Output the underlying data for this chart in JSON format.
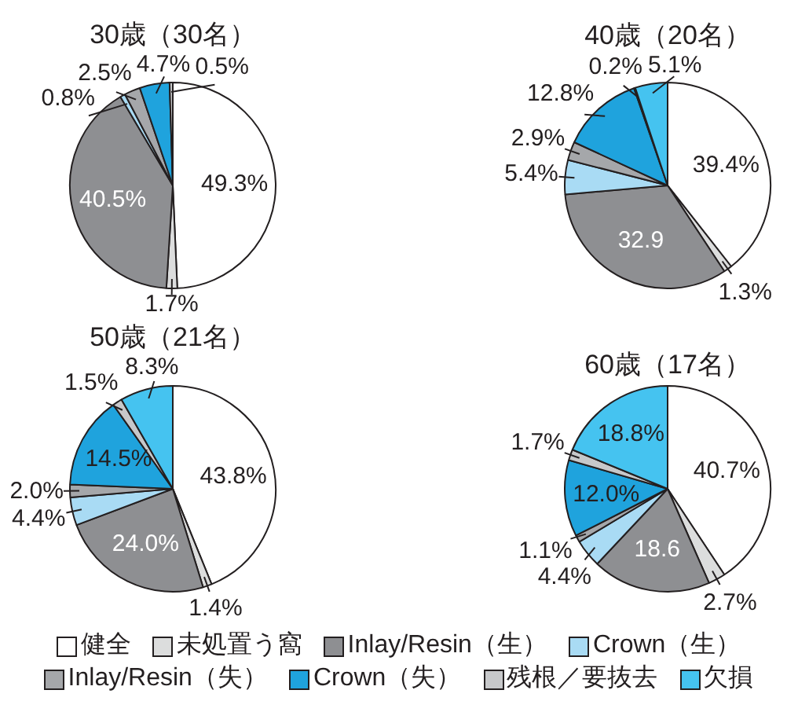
{
  "chart_data": [
    {
      "type": "pie",
      "title": "30歳（30名）",
      "categories": [
        "健全",
        "未処置う窩",
        "Inlay/Resin（生）",
        "Crown（生）",
        "Inlay/Resin（失）",
        "Crown（失）",
        "残根／要抜去",
        "欠損"
      ],
      "values": [
        49.3,
        1.7,
        40.5,
        0.8,
        2.5,
        4.7,
        0.5,
        0
      ],
      "colors": [
        "#ffffff",
        "#dcdddd",
        "#8e8f92",
        "#a9dbf4",
        "#a5a7aa",
        "#1fa3dd",
        "#c7c8ca",
        "#45c3f0"
      ],
      "value_labels": [
        "49.3%",
        "1.7%",
        "40.5%",
        "0.8%",
        "2.5%",
        "4.7%",
        "0.5%",
        null
      ],
      "legend": "bottom"
    },
    {
      "type": "pie",
      "title": "40歳（20名）",
      "categories": [
        null,
        null,
        null,
        null,
        null,
        null,
        null,
        null
      ],
      "values": [
        39.4,
        1.3,
        32.9,
        5.4,
        2.9,
        12.8,
        0.2,
        5.1
      ],
      "colors": [
        "#ffffff",
        "#dcdddd",
        "#8e8f92",
        "#a9dbf4",
        "#a5a7aa",
        "#1fa3dd",
        "#c7c8ca",
        "#45c3f0"
      ],
      "value_labels": [
        "39.4%",
        "1.3%",
        "32.9",
        "5.4%",
        "2.9%",
        "12.8%",
        "0.2%",
        "5.1%"
      ]
    },
    {
      "type": "pie",
      "title": "50歳（21名）",
      "categories": [
        null,
        null,
        null,
        null,
        null,
        null,
        null,
        null
      ],
      "values": [
        43.8,
        1.4,
        24.0,
        4.4,
        2.0,
        14.5,
        1.5,
        8.3
      ],
      "colors": [
        "#ffffff",
        "#dcdddd",
        "#8e8f92",
        "#a9dbf4",
        "#a5a7aa",
        "#1fa3dd",
        "#c7c8ca",
        "#45c3f0"
      ],
      "value_labels": [
        "43.8%",
        "1.4%",
        "24.0%",
        "4.4%",
        "2.0%",
        "14.5%",
        "1.5%",
        "8.3%"
      ]
    },
    {
      "type": "pie",
      "title": "60歳（17名）",
      "categories": [
        null,
        null,
        null,
        null,
        null,
        null,
        null,
        null
      ],
      "values": [
        40.7,
        2.7,
        18.6,
        4.4,
        1.1,
        12.0,
        1.7,
        18.8
      ],
      "colors": [
        "#ffffff",
        "#dcdddd",
        "#8e8f92",
        "#a9dbf4",
        "#a5a7aa",
        "#1fa3dd",
        "#c7c8ca",
        "#45c3f0"
      ],
      "value_labels": [
        "40.7%",
        "2.7%",
        "18.6",
        "4.4%",
        "1.1%",
        "12.0%",
        "1.7%",
        "18.8%"
      ]
    }
  ]
}
